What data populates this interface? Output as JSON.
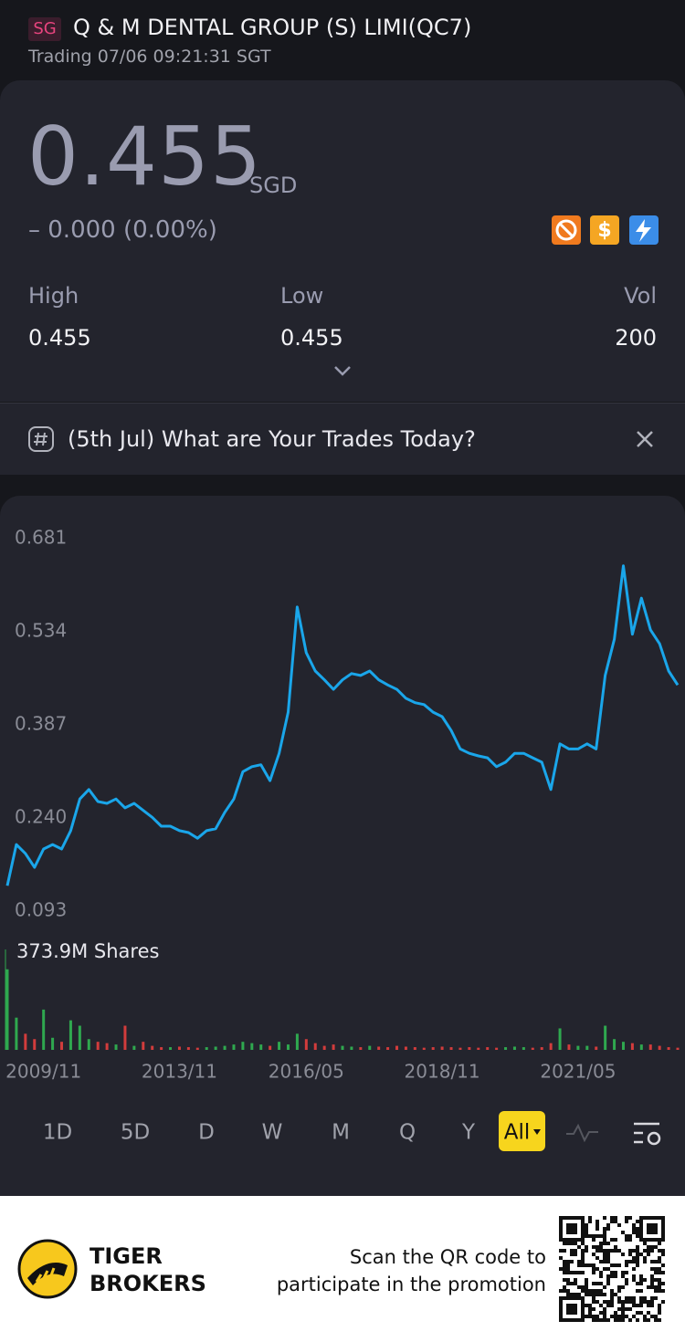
{
  "header": {
    "market": "SG",
    "title": "Q & M DENTAL GROUP (S) LIMI",
    "code": "(QC7)",
    "status": "Trading 07/06 09:21:31 SGT"
  },
  "quote": {
    "price": "0.455",
    "currency": "SGD",
    "change": "– 0.000 (0.00%)",
    "stats": [
      {
        "label": "High",
        "value": "0.455"
      },
      {
        "label": "Low",
        "value": "0.455"
      },
      {
        "label": "Vol",
        "value": "200"
      }
    ]
  },
  "banner": {
    "text": "(5th Jul) What are Your Trades Today?"
  },
  "chart_data": [
    {
      "type": "line",
      "color": "#1aa6ea",
      "categories": [
        null,
        null,
        null,
        null,
        "2009/11",
        null,
        null,
        null,
        null,
        null,
        null,
        null,
        null,
        null,
        null,
        null,
        null,
        null,
        null,
        "2013/11",
        null,
        null,
        null,
        null,
        null,
        null,
        null,
        null,
        null,
        null,
        null,
        null,
        null,
        "2016/05",
        null,
        null,
        null,
        null,
        null,
        null,
        null,
        null,
        null,
        null,
        null,
        null,
        null,
        null,
        "2018/11",
        null,
        null,
        null,
        null,
        null,
        null,
        null,
        null,
        null,
        null,
        null,
        null,
        null,
        null,
        "2021/05",
        null,
        null,
        null,
        null,
        null,
        null,
        null,
        null,
        null,
        null,
        null
      ],
      "values": [
        0.133,
        0.198,
        0.184,
        0.162,
        0.191,
        0.198,
        0.191,
        0.22,
        0.27,
        0.285,
        0.266,
        0.263,
        0.27,
        0.256,
        0.263,
        0.252,
        0.241,
        0.227,
        0.227,
        0.22,
        0.217,
        0.208,
        0.22,
        0.223,
        0.249,
        0.27,
        0.313,
        0.321,
        0.324,
        0.299,
        0.342,
        0.407,
        0.573,
        0.501,
        0.472,
        0.458,
        0.443,
        0.458,
        0.468,
        0.465,
        0.472,
        0.458,
        0.45,
        0.443,
        0.429,
        0.422,
        0.419,
        0.407,
        0.4,
        0.378,
        0.349,
        0.342,
        0.338,
        0.335,
        0.321,
        0.328,
        0.342,
        0.342,
        0.335,
        0.328,
        0.285,
        0.357,
        0.349,
        0.349,
        0.357,
        0.349,
        0.465,
        0.522,
        0.638,
        0.53,
        0.587,
        0.537,
        0.515,
        0.472,
        0.45
      ],
      "ylim": [
        0.093,
        0.681
      ],
      "yticks": [
        0.681,
        0.534,
        0.387,
        {
          "value": 0.24,
          "label": "0.240"
        },
        0.093
      ]
    },
    {
      "type": "bar",
      "label": "373.9M Shares",
      "up_color": "#2fa84f",
      "down_color": "#d23c3c",
      "ylim": [
        0,
        373.9
      ],
      "values": [
        300,
        120,
        60,
        40,
        150,
        45,
        30,
        110,
        90,
        40,
        30,
        25,
        20,
        90,
        15,
        30,
        15,
        10,
        10,
        12,
        10,
        8,
        10,
        12,
        15,
        20,
        30,
        25,
        20,
        15,
        30,
        20,
        60,
        40,
        25,
        15,
        20,
        15,
        12,
        10,
        15,
        12,
        10,
        15,
        12,
        10,
        8,
        10,
        12,
        10,
        8,
        10,
        8,
        10,
        8,
        10,
        12,
        10,
        8,
        10,
        25,
        80,
        20,
        15,
        15,
        12,
        90,
        40,
        30,
        25,
        20,
        20,
        15,
        10,
        8
      ]
    }
  ],
  "tabs": [
    "1D",
    "5D",
    "D",
    "W",
    "M",
    "Q",
    "Y",
    "All"
  ],
  "footer": {
    "brand_line1": "TIGER",
    "brand_line2": "BROKERS",
    "cta_line1": "Scan the QR code to",
    "cta_line2": "participate in the promotion"
  }
}
